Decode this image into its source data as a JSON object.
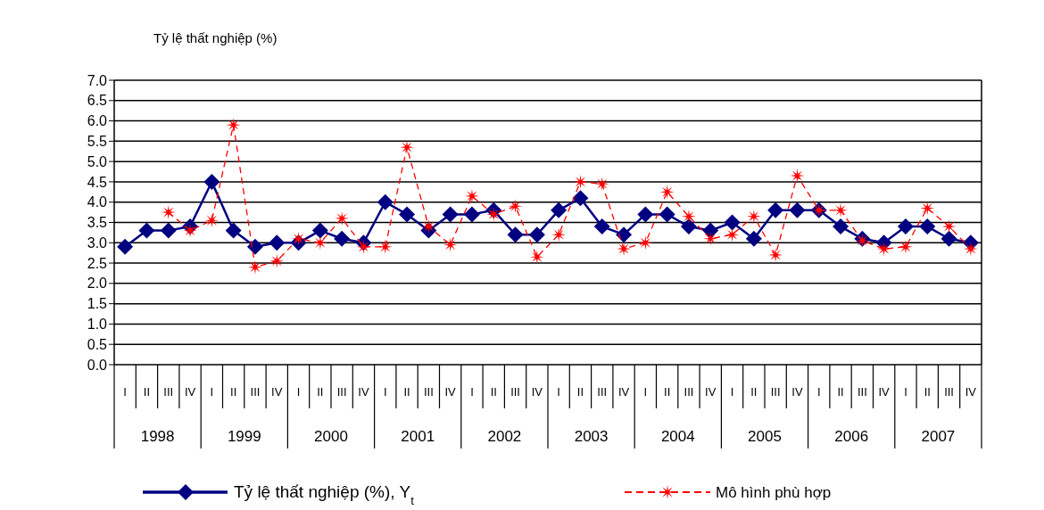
{
  "chart_data": {
    "type": "line",
    "ylabel": "Tỷ lệ thất nghiệp (%)",
    "categories": [
      "I",
      "II",
      "III",
      "IV",
      "I",
      "II",
      "III",
      "IV",
      "I",
      "II",
      "III",
      "IV",
      "I",
      "II",
      "III",
      "IV",
      "I",
      "II",
      "III",
      "IV",
      "I",
      "II",
      "III",
      "IV",
      "I",
      "II",
      "III",
      "IV",
      "I",
      "II",
      "III",
      "IV",
      "I",
      "II",
      "III",
      "IV",
      "I",
      "II",
      "III",
      "IV"
    ],
    "annotations": [
      "1998",
      "1999",
      "2000",
      "2001",
      "2002",
      "2003",
      "2004",
      "2005",
      "2006",
      "2007"
    ],
    "series": [
      {
        "name": "Tỷ lệ thất nghiệp (%), Y$_{t}$",
        "color": "#000080",
        "marker": "diamond",
        "line_style": "solid",
        "values": [
          2.9,
          3.3,
          3.3,
          3.4,
          4.5,
          3.3,
          2.9,
          3.0,
          3.0,
          3.3,
          3.1,
          3.0,
          4.0,
          3.7,
          3.3,
          3.7,
          3.7,
          3.8,
          3.2,
          3.2,
          3.8,
          4.1,
          3.4,
          3.2,
          3.7,
          3.7,
          3.4,
          3.3,
          3.5,
          3.1,
          3.8,
          3.8,
          3.8,
          3.4,
          3.1,
          3.0,
          3.4,
          3.4,
          3.1,
          3.0
        ]
      },
      {
        "name": "Mô hình phù hợp",
        "color": "#ff0000",
        "marker": "star",
        "line_style": "dashed",
        "values": [
          null,
          null,
          3.75,
          3.3,
          3.55,
          5.9,
          2.4,
          2.55,
          3.1,
          3.0,
          3.6,
          2.9,
          2.9,
          5.35,
          3.4,
          2.95,
          4.15,
          3.7,
          3.9,
          2.65,
          3.2,
          4.5,
          4.45,
          2.85,
          3.0,
          4.25,
          3.65,
          3.1,
          3.2,
          3.65,
          2.7,
          4.65,
          3.8,
          3.8,
          3.05,
          2.85,
          2.9,
          3.85,
          3.4,
          2.85
        ]
      }
    ],
    "ylim": [
      0,
      7
    ],
    "yticks": [
      {
        "value": 0,
        "label": "0.0"
      },
      {
        "value": 0.5,
        "label": "0.5"
      },
      {
        "value": 1,
        "label": "1.0"
      },
      {
        "value": 1.5,
        "label": "1.5"
      },
      {
        "value": 2,
        "label": "2.0"
      },
      {
        "value": 2.5,
        "label": "2.5"
      },
      {
        "value": 3,
        "label": "3.0"
      },
      {
        "value": 3.5,
        "label": "3.5"
      },
      {
        "value": 4,
        "label": "4.0"
      },
      {
        "value": 4.5,
        "label": "4.5"
      },
      {
        "value": 5,
        "label": "5.0"
      },
      {
        "value": 5.5,
        "label": "5.5"
      },
      {
        "value": 6,
        "label": "6.0"
      },
      {
        "value": 6.5,
        "label": "6.5"
      },
      {
        "value": 7,
        "label": "7.0"
      }
    ],
    "grid": "y",
    "legend": "bottom"
  }
}
